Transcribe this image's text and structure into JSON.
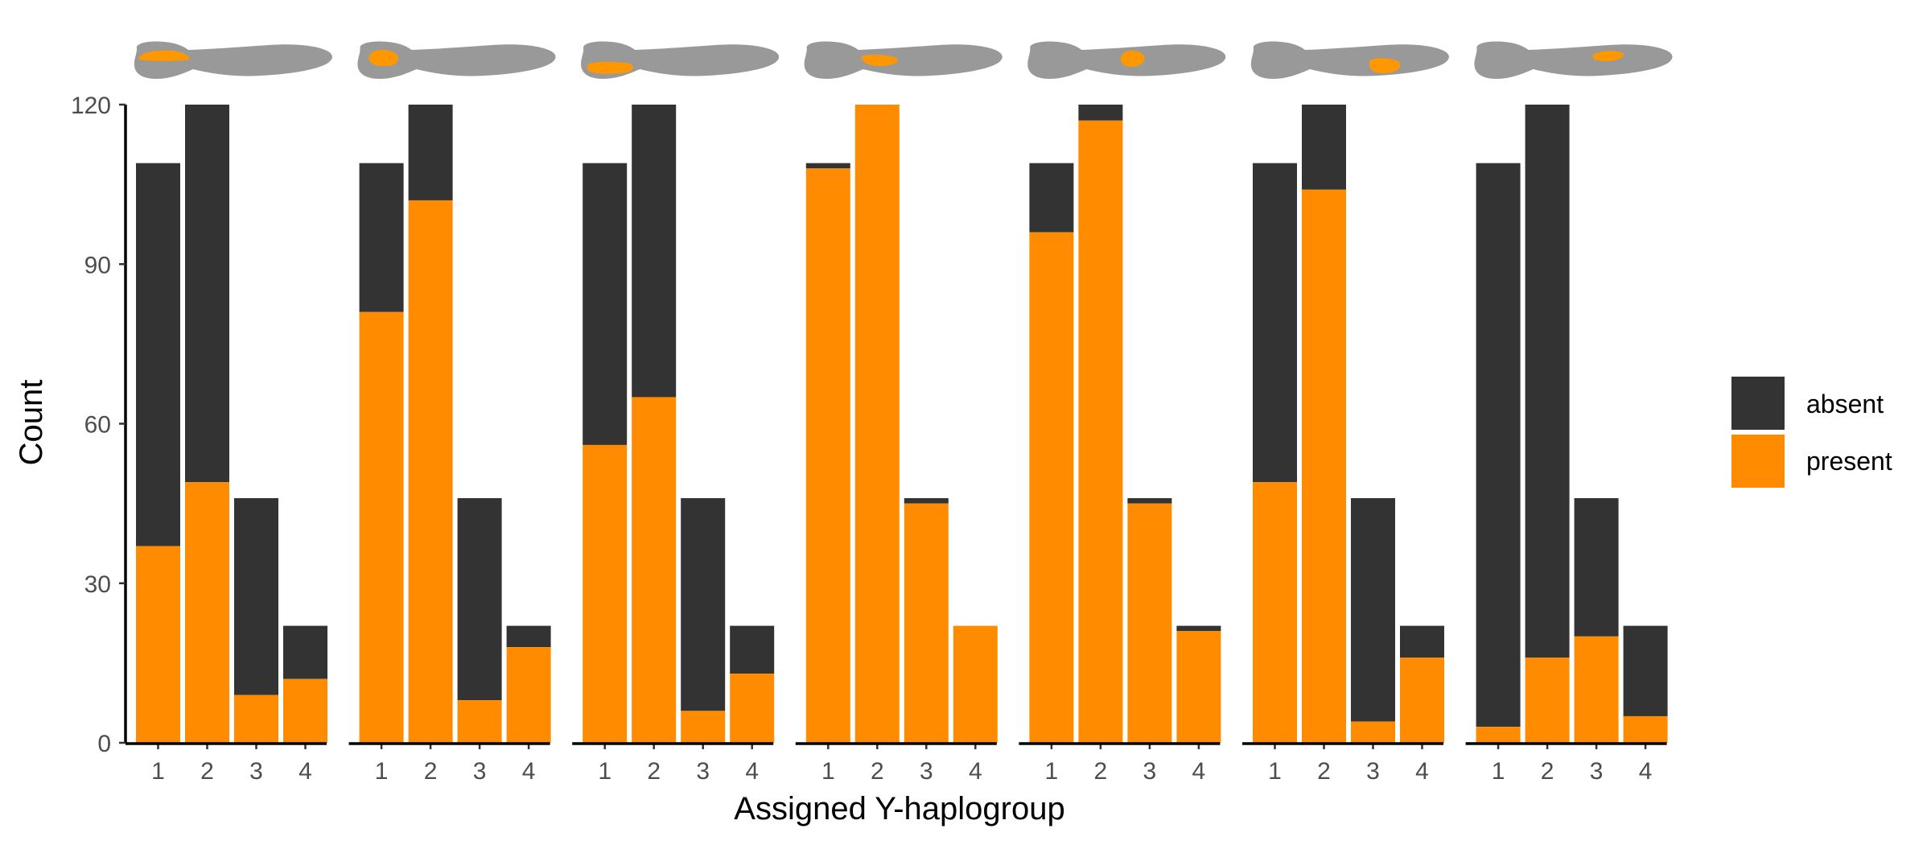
{
  "chart_data": {
    "type": "bar",
    "stacked": true,
    "layout": "small multiples (7 panels, shared y-axis)",
    "xlabel": "Assigned Y-haplogroup",
    "ylabel": "Count",
    "y_ticks": [
      0,
      30,
      60,
      90,
      120
    ],
    "ylim": [
      0,
      120
    ],
    "categories": [
      "1",
      "2",
      "3",
      "4"
    ],
    "legend": {
      "position": "right",
      "entries": [
        "absent",
        "present"
      ]
    },
    "colors": {
      "absent": "#333333",
      "present": "#ff8c00"
    },
    "panel_header": "gray fish silhouette with orange highlighted region",
    "panels": [
      {
        "present": [
          37,
          49,
          9,
          12
        ],
        "absent": [
          72,
          71,
          37,
          10
        ]
      },
      {
        "present": [
          81,
          102,
          8,
          18
        ],
        "absent": [
          28,
          18,
          38,
          4
        ]
      },
      {
        "present": [
          56,
          65,
          6,
          13
        ],
        "absent": [
          53,
          55,
          40,
          9
        ]
      },
      {
        "present": [
          108,
          120,
          45,
          22
        ],
        "absent": [
          1,
          0,
          1,
          0
        ]
      },
      {
        "present": [
          96,
          117,
          45,
          21
        ],
        "absent": [
          13,
          3,
          1,
          1
        ]
      },
      {
        "present": [
          49,
          104,
          4,
          16
        ],
        "absent": [
          60,
          16,
          42,
          6
        ]
      },
      {
        "present": [
          3,
          16,
          20,
          5
        ],
        "absent": [
          106,
          104,
          26,
          17
        ]
      }
    ]
  }
}
